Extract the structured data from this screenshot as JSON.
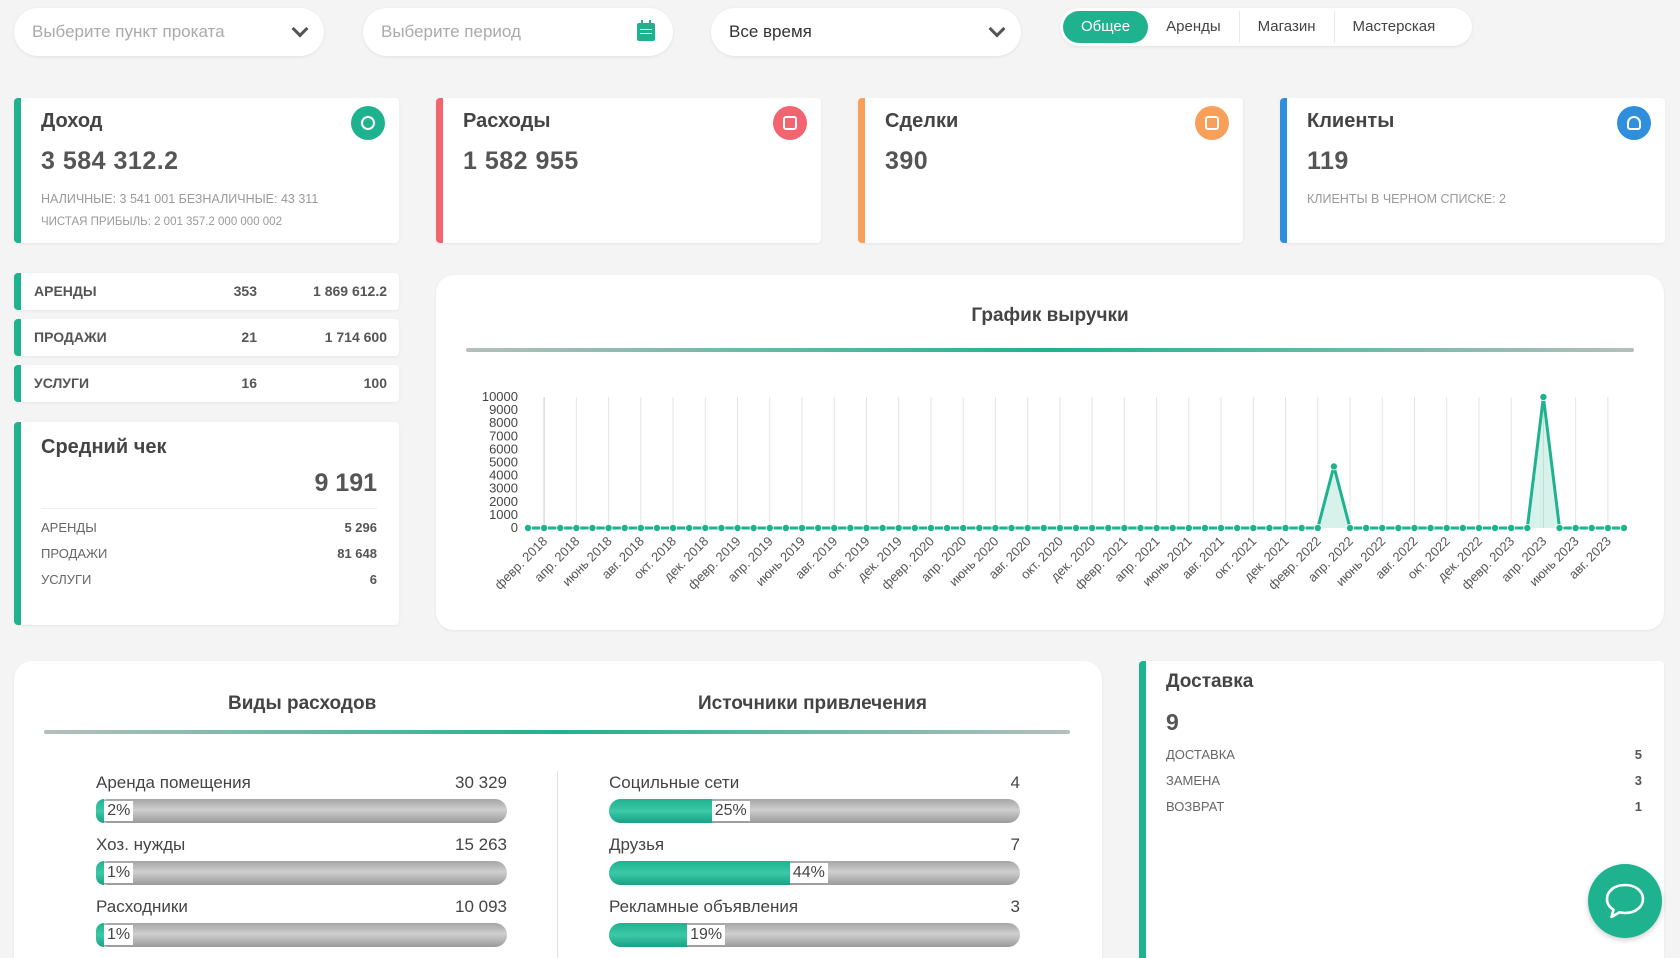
{
  "filters": {
    "location_placeholder": "Выберите пункт проката",
    "period_placeholder": "Выберите период",
    "range_value": "Все время"
  },
  "tabs": [
    "Общее",
    "Аренды",
    "Магазин",
    "Мастерская"
  ],
  "active_tab": "Общее",
  "stats": {
    "income": {
      "title": "Доход",
      "value": "3 584 312.2",
      "sub": "НАЛИЧНЫЕ: 3 541 001 БЕЗНАЛИЧНЫЕ: 43 311",
      "sub2": "ЧИСТАЯ ПРИБЫЛЬ: 2 001 357.2 000 000 002",
      "color": "#1fb28f",
      "icon": "coins-icon"
    },
    "expenses": {
      "title": "Расходы",
      "value": "1 582 955",
      "color": "#f26470",
      "icon": "receipt-icon"
    },
    "deals": {
      "title": "Сделки",
      "value": "390",
      "color": "#f8a05a",
      "icon": "document-icon"
    },
    "clients": {
      "title": "Клиенты",
      "value": "119",
      "sub": "КЛИЕНТЫ В ЧЕРНОМ СПИСКЕ: 2",
      "color": "#2f8fdc",
      "icon": "user-check-icon"
    }
  },
  "summary_rows": [
    {
      "label": "АРЕНДЫ",
      "count": "353",
      "amount": "1 869 612.2"
    },
    {
      "label": "ПРОДАЖИ",
      "count": "21",
      "amount": "1 714 600"
    },
    {
      "label": "УСЛУГИ",
      "count": "16",
      "amount": "100"
    }
  ],
  "avg_check": {
    "title": "Средний чек",
    "value": "9 191",
    "lines": [
      {
        "label": "АРЕНДЫ",
        "value": "5 296"
      },
      {
        "label": "ПРОДАЖИ",
        "value": "81 648"
      },
      {
        "label": "УСЛУГИ",
        "value": "6"
      }
    ]
  },
  "chart_data": {
    "type": "area",
    "title": "График выручки",
    "xlabel": "",
    "ylabel": "",
    "ylim": [
      0,
      10000
    ],
    "y_ticks": [
      0,
      1000,
      2000,
      3000,
      4000,
      5000,
      6000,
      7000,
      8000,
      9000,
      10000
    ],
    "x_tick_labels": [
      "февр. 2018",
      "апр. 2018",
      "июнь 2018",
      "авг. 2018",
      "окт. 2018",
      "дек. 2018",
      "февр. 2019",
      "апр. 2019",
      "июнь 2019",
      "авг. 2019",
      "окт. 2019",
      "дек. 2019",
      "февр. 2020",
      "апр. 2020",
      "июнь 2020",
      "авг. 2020",
      "окт. 2020",
      "дек. 2020",
      "февр. 2021",
      "апр. 2021",
      "июнь 2021",
      "авг. 2021",
      "окт. 2021",
      "дек. 2021",
      "февр. 2022",
      "апр. 2022",
      "июнь 2022",
      "авг. 2022",
      "окт. 2022",
      "дек. 2022",
      "февр. 2023",
      "апр. 2023",
      "июнь 2023",
      "авг. 2023"
    ],
    "x": [
      "2018-01",
      "2018-02",
      "2018-03",
      "2018-04",
      "2018-05",
      "2018-06",
      "2018-07",
      "2018-08",
      "2018-09",
      "2018-10",
      "2018-11",
      "2018-12",
      "2019-01",
      "2019-02",
      "2019-03",
      "2019-04",
      "2019-05",
      "2019-06",
      "2019-07",
      "2019-08",
      "2019-09",
      "2019-10",
      "2019-11",
      "2019-12",
      "2020-01",
      "2020-02",
      "2020-03",
      "2020-04",
      "2020-05",
      "2020-06",
      "2020-07",
      "2020-08",
      "2020-09",
      "2020-10",
      "2020-11",
      "2020-12",
      "2021-01",
      "2021-02",
      "2021-03",
      "2021-04",
      "2021-05",
      "2021-06",
      "2021-07",
      "2021-08",
      "2021-09",
      "2021-10",
      "2021-11",
      "2021-12",
      "2022-01",
      "2022-02",
      "2022-03",
      "2022-04",
      "2022-05",
      "2022-06",
      "2022-07",
      "2022-08",
      "2022-09",
      "2022-10",
      "2022-11",
      "2022-12",
      "2023-01",
      "2023-02",
      "2023-03",
      "2023-04",
      "2023-05",
      "2023-06",
      "2023-07",
      "2023-08",
      "2023-09"
    ],
    "values": [
      0,
      0,
      0,
      0,
      0,
      0,
      0,
      0,
      0,
      0,
      0,
      0,
      0,
      0,
      0,
      0,
      0,
      0,
      0,
      0,
      0,
      0,
      0,
      0,
      0,
      0,
      0,
      0,
      0,
      0,
      0,
      0,
      0,
      0,
      0,
      0,
      0,
      0,
      0,
      0,
      0,
      0,
      0,
      0,
      0,
      0,
      0,
      0,
      0,
      0,
      4700,
      0,
      0,
      0,
      0,
      0,
      0,
      0,
      0,
      0,
      0,
      0,
      0,
      10000,
      0,
      0,
      0,
      0,
      0
    ],
    "grid": true,
    "color": "#1fb28f"
  },
  "expenses_panel": {
    "title": "Виды расходов",
    "items": [
      {
        "label": "Аренда помещения",
        "value": "30 329",
        "pct": 2,
        "pct_label": "2%"
      },
      {
        "label": "Хоз. нужды",
        "value": "15 263",
        "pct": 1,
        "pct_label": "1%"
      },
      {
        "label": "Расходники",
        "value": "10 093",
        "pct": 1,
        "pct_label": "1%"
      }
    ]
  },
  "sources_panel": {
    "title": "Источники привлечения",
    "items": [
      {
        "label": "Социльные сети",
        "value": "4",
        "pct": 25,
        "pct_label": "25%"
      },
      {
        "label": "Друзья",
        "value": "7",
        "pct": 44,
        "pct_label": "44%"
      },
      {
        "label": "Рекламные объявления",
        "value": "3",
        "pct": 19,
        "pct_label": "19%"
      }
    ]
  },
  "delivery": {
    "title": "Доставка",
    "value": "9",
    "lines": [
      {
        "label": "ДОСТАВКА",
        "value": "5"
      },
      {
        "label": "ЗАМЕНА",
        "value": "3"
      },
      {
        "label": "ВОЗВРАТ",
        "value": "1"
      }
    ]
  }
}
